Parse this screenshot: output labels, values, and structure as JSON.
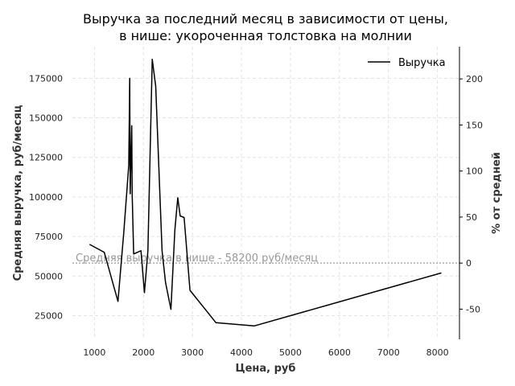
{
  "chart_data": {
    "type": "line",
    "title": "Выручка за последний месяц в зависимости от цены,",
    "subtitle": "в нише: укороченная толстовка на молнии",
    "xlabel": "Цена, руб",
    "ylabel": "Средняя выручка, руб/месяц",
    "ylabel_right": "% от средней",
    "xlim": [
      550,
      8450
    ],
    "ylim": [
      10000,
      195000
    ],
    "x_ticks": [
      1000,
      2000,
      3000,
      4000,
      5000,
      6000,
      7000,
      8000
    ],
    "y_ticks": [
      25000,
      50000,
      75000,
      100000,
      125000,
      150000,
      175000
    ],
    "y_ticks_right": [
      -50,
      0,
      50,
      100,
      150,
      200
    ],
    "grid": true,
    "legend_position": "top-right",
    "average": {
      "value": 58200,
      "label": "Средняя выручка в нише - 58200 руб/месяц"
    },
    "series": [
      {
        "name": "Выручка",
        "color": "#000000",
        "x": [
          900,
          1200,
          1480,
          1600,
          1700,
          1720,
          1730,
          1760,
          1770,
          1800,
          1950,
          2020,
          2090,
          2180,
          2250,
          2380,
          2450,
          2560,
          2640,
          2700,
          2750,
          2830,
          2950,
          3480,
          4260,
          8080
        ],
        "y": [
          70000,
          65000,
          34000,
          78000,
          120000,
          175000,
          102000,
          145000,
          101000,
          64000,
          66000,
          39500,
          66000,
          187000,
          170000,
          66000,
          46000,
          29000,
          79000,
          99500,
          88000,
          87000,
          41000,
          20500,
          18500,
          52000
        ]
      }
    ]
  }
}
